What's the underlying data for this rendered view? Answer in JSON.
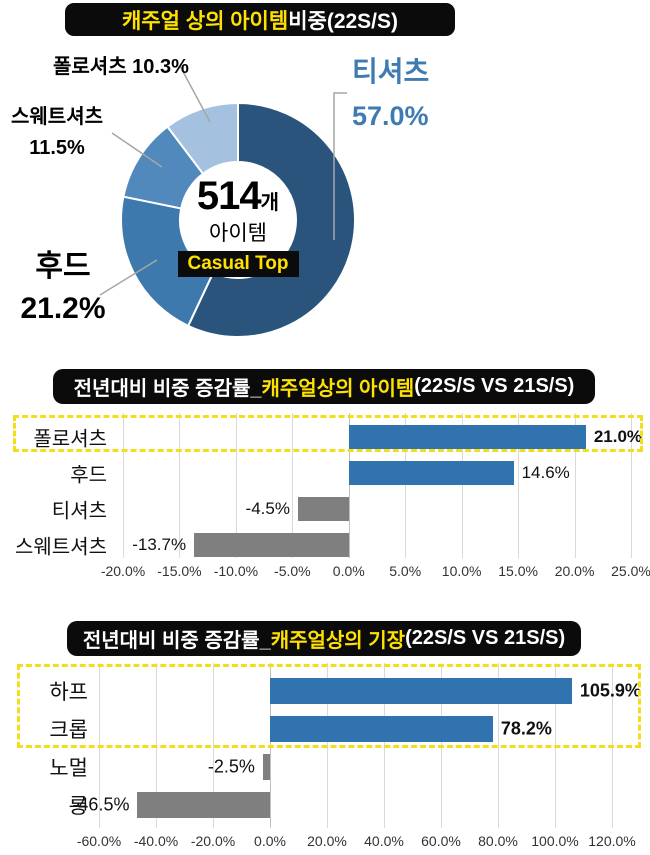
{
  "colors": {
    "title_bg": "#0b0b0b",
    "title_text": "#ffffff",
    "title_highlight": "#ffe100",
    "bar_positive": "#3173ae",
    "bar_negative": "#7f7f7f",
    "gridline": "#d9d9d9",
    "leader_line": "#a6a6a6",
    "highlight_border": "#f2de1b",
    "tshirt_label_blue": "#3d7bb2"
  },
  "section1": {
    "title": {
      "highlight": "캐주얼 상의 아이템",
      "rest": " 비중(22S/S)"
    },
    "labels": {
      "polo": {
        "text": "폴로셔츠 10.3%"
      },
      "sweat": {
        "name": "스웨트셔츠",
        "value": "11.5%"
      },
      "tshirt": {
        "name": "티셔츠",
        "value": "57.0%"
      },
      "hood": {
        "name": "후드",
        "value": "21.2%"
      }
    },
    "center": {
      "value": "514",
      "unit": "개",
      "label": "아이템",
      "badge": "Casual Top"
    }
  },
  "section2": {
    "title": {
      "pre": "전년대비 비중 증감률_",
      "highlight": "캐주얼상의 아이템",
      "post": "(22S/S VS 21S/S)"
    }
  },
  "section3": {
    "title": {
      "pre": "전년대비 비중 증감률_",
      "highlight": "캐주얼상의 기장",
      "post": "(22S/S VS 21S/S)"
    }
  },
  "chart_data": [
    {
      "type": "pie",
      "donut": true,
      "title": "캐주얼 상의 아이템 비중(22S/S)",
      "labels": [
        "티셔츠",
        "후드",
        "스웨트셔츠",
        "폴로셔츠"
      ],
      "values": [
        57.0,
        21.2,
        11.5,
        10.3
      ],
      "value_labels": [
        "57.0%",
        "21.2%",
        "11.5%",
        "10.3%"
      ],
      "colors": [
        "#2a547c",
        "#3e79ae",
        "#5189bc",
        "#a4c2df"
      ],
      "center_text": "514개 아이템 Casual Top",
      "start_angle_deg": 0,
      "direction": "clockwise",
      "legend_position": "outside-callouts"
    },
    {
      "type": "bar",
      "orientation": "horizontal",
      "title": "전년대비 비중 증감률_캐주얼상의 아이템(22S/S VS 21S/S)",
      "categories": [
        "폴로셔츠",
        "후드",
        "티셔츠",
        "스웨트셔츠"
      ],
      "values": [
        21.0,
        14.6,
        -4.5,
        -13.7
      ],
      "value_labels": [
        "21.0%",
        "14.6%",
        "-4.5%",
        "-13.7%"
      ],
      "value_bold": [
        true,
        false,
        false,
        false
      ],
      "xlim": [
        -20,
        25
      ],
      "tick_values": [
        -20,
        -15,
        -10,
        -5,
        0,
        5,
        10,
        15,
        20,
        25
      ],
      "ticks": [
        "-20.0%",
        "-15.0%",
        "-10.0%",
        "-5.0%",
        "0.0%",
        "5.0%",
        "10.0%",
        "15.0%",
        "20.0%",
        "25.0%"
      ],
      "grid": true,
      "highlighted_categories": [
        "폴로셔츠"
      ]
    },
    {
      "type": "bar",
      "orientation": "horizontal",
      "title": "전년대비 비중 증감률_캐주얼상의 기장(22S/S VS 21S/S)",
      "categories": [
        "하프",
        "크롭",
        "노멀",
        "롱"
      ],
      "values": [
        105.9,
        78.2,
        -2.5,
        -46.5
      ],
      "value_labels": [
        "105.9%",
        "78.2%",
        "-2.5%",
        "-46.5%"
      ],
      "value_bold": [
        true,
        true,
        false,
        false
      ],
      "xlim": [
        -60,
        120
      ],
      "tick_values": [
        -60,
        -40,
        -20,
        0,
        20,
        40,
        60,
        80,
        100,
        120
      ],
      "ticks": [
        "-60.0%",
        "-40.0%",
        "-20.0%",
        "0.0%",
        "20.0%",
        "40.0%",
        "60.0%",
        "80.0%",
        "100.0%",
        "120.0%"
      ],
      "grid": true,
      "highlighted_categories": [
        "하프",
        "크롭"
      ]
    }
  ]
}
